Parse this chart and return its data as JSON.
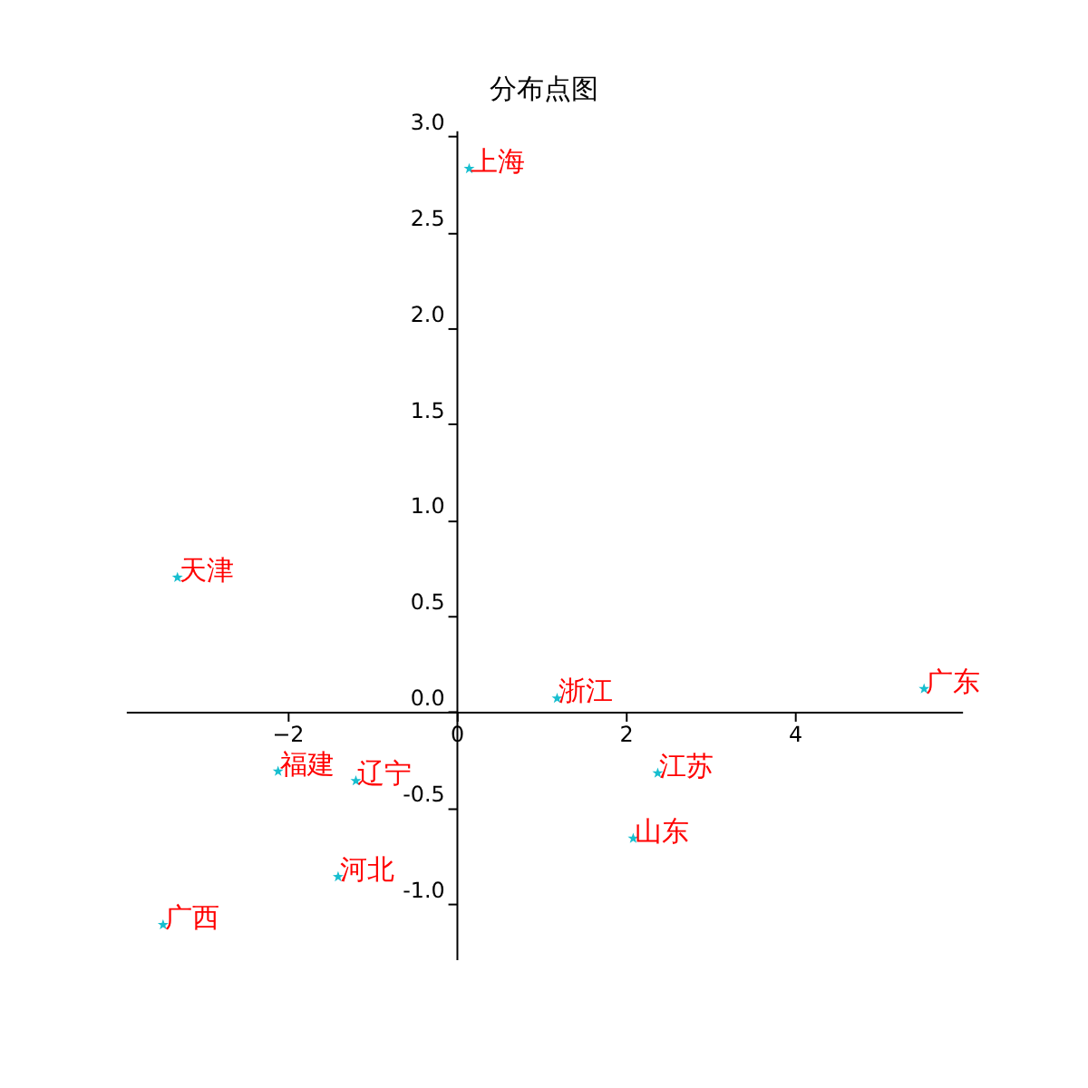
{
  "chart_data": {
    "type": "scatter",
    "title": "分布点图",
    "x": [
      0.15,
      -3.3,
      1.19,
      5.53,
      -2.11,
      -1.19,
      2.38,
      2.09,
      -1.4,
      -3.47
    ],
    "series": [
      {
        "color": "#17becf",
        "values": [
          2.83,
          0.7,
          0.07,
          0.12,
          -0.31,
          -0.36,
          -0.32,
          -0.66,
          -0.86,
          -1.11
        ]
      }
    ],
    "annotations": [
      {
        "text": "上海",
        "x": 0.15,
        "y": 2.83
      },
      {
        "text": "天津",
        "x": -3.3,
        "y": 0.7
      },
      {
        "text": "浙江",
        "x": 1.19,
        "y": 0.07
      },
      {
        "text": "广东",
        "x": 5.53,
        "y": 0.12
      },
      {
        "text": "福建",
        "x": -2.11,
        "y": -0.31
      },
      {
        "text": "辽宁",
        "x": -1.19,
        "y": -0.36
      },
      {
        "text": "江苏",
        "x": 2.38,
        "y": -0.32
      },
      {
        "text": "山东",
        "x": 2.09,
        "y": -0.66
      },
      {
        "text": "河北",
        "x": -1.4,
        "y": -0.86
      },
      {
        "text": "广西",
        "x": -3.47,
        "y": -1.11
      }
    ],
    "xlim": [
      -3.91,
      5.98
    ],
    "ylim": [
      -1.29,
      3.03
    ],
    "xticks": [
      -2,
      0,
      2,
      4
    ],
    "yticks": [
      {
        "value": -1,
        "label": "-1.0"
      },
      {
        "value": -0.5,
        "label": "-0.5"
      },
      {
        "value": 0,
        "label": "0.0"
      },
      {
        "value": 0.5,
        "label": "0.5"
      },
      {
        "value": 1,
        "label": "1.0"
      },
      {
        "value": 1.5,
        "label": "1.5"
      },
      {
        "value": 2,
        "label": "2.0"
      },
      {
        "value": 2.5,
        "label": "2.5"
      },
      {
        "value": 3,
        "label": "3.0"
      }
    ],
    "marker": "star",
    "grid": false
  }
}
